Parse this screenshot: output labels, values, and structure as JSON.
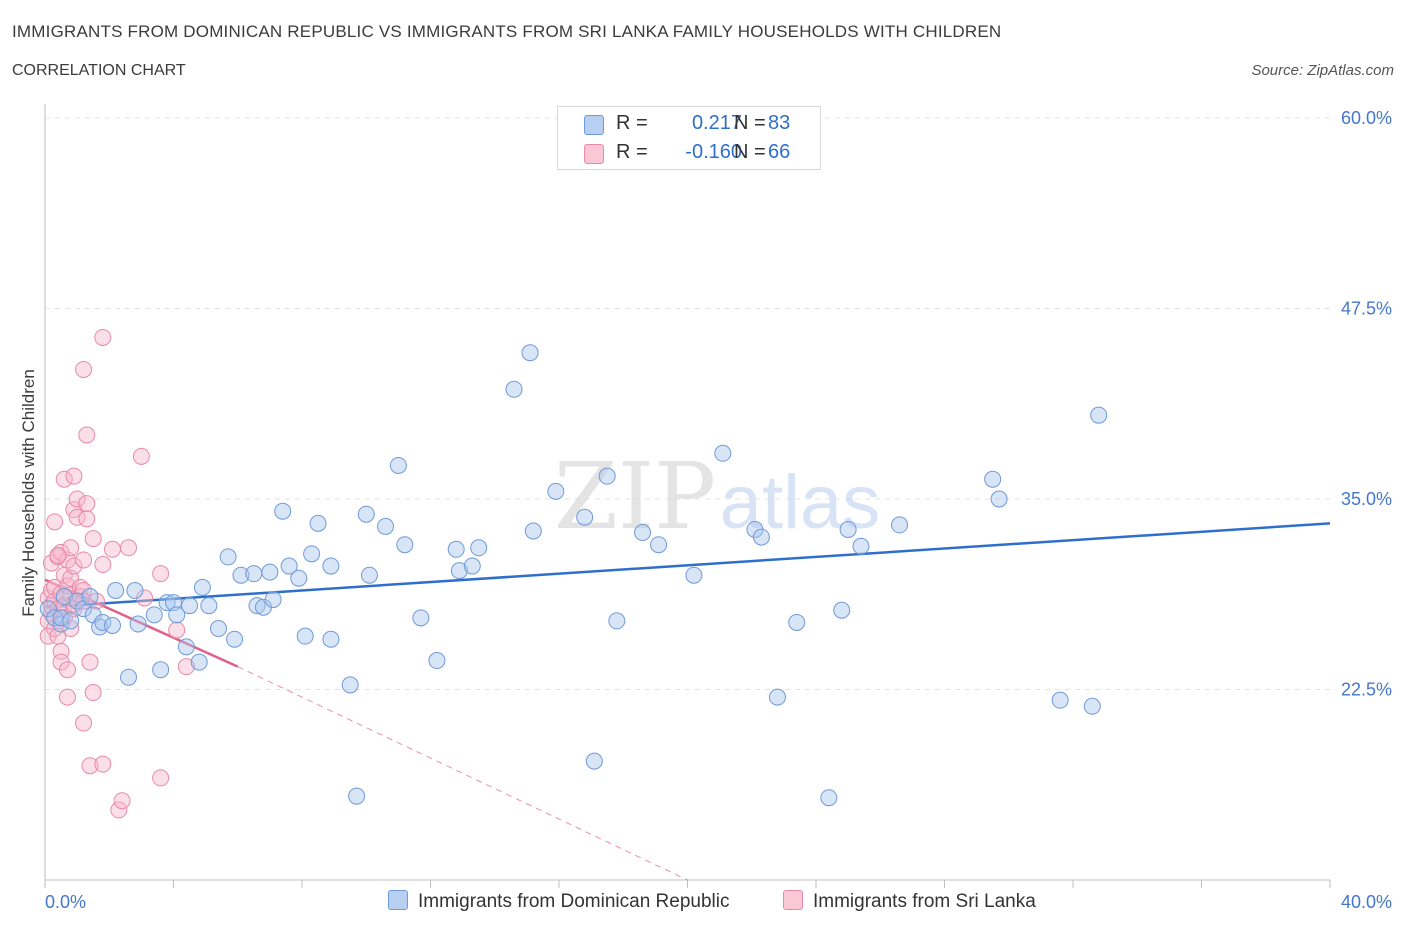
{
  "header": {
    "title": "IMMIGRANTS FROM DOMINICAN REPUBLIC VS IMMIGRANTS FROM SRI LANKA FAMILY HOUSEHOLDS WITH CHILDREN",
    "subtitle": "CORRELATION CHART",
    "source": "Source: ZipAtlas.com"
  },
  "legend": {
    "series1": {
      "r_label": "R =",
      "r_value": "0.217",
      "n_label": "N =",
      "n_value": "83"
    },
    "series2": {
      "r_label": "R =",
      "r_value": "-0.160",
      "n_label": "N =",
      "n_value": "66"
    }
  },
  "bottom_legend": {
    "series1": "Immigrants from Dominican Republic",
    "series2": "Immigrants from Sri Lanka"
  },
  "watermark": {
    "zip": "ZIP",
    "atlas": "atlas"
  },
  "colors": {
    "blue_fill": "#a8c6ee",
    "blue_stroke": "#6f9ad8",
    "blue_line": "#2f6fcc",
    "pink_fill": "#f6b8cb",
    "pink_stroke": "#e88aa8",
    "pink_line": "#e0608a",
    "grid": "#e3e3e3",
    "tick_text": "#4477cc"
  },
  "chart_data": {
    "type": "scatter",
    "title": "IMMIGRANTS FROM DOMINICAN REPUBLIC VS IMMIGRANTS FROM SRI LANKA FAMILY HOUSEHOLDS WITH CHILDREN",
    "ylabel": "Family Households with Children",
    "xlabel": "",
    "xlim": [
      0,
      40
    ],
    "ylim": [
      10,
      60
    ],
    "x_tick_labels": [
      "0.0%",
      "40.0%"
    ],
    "y_ticks": [
      22.5,
      35,
      47.5,
      60
    ],
    "y_tick_labels": [
      "22.5%",
      "35.0%",
      "47.5%",
      "60.0%"
    ],
    "grid": true,
    "legend_position": "top-center",
    "series": [
      {
        "name": "Immigrants from Dominican Republic",
        "color": "#a8c6ee",
        "points": [
          [
            0.1,
            27.8
          ],
          [
            0.3,
            27.2
          ],
          [
            0.5,
            26.8
          ],
          [
            0.5,
            27.2
          ],
          [
            0.6,
            28.6
          ],
          [
            0.8,
            27.0
          ],
          [
            1.0,
            28.3
          ],
          [
            1.2,
            27.8
          ],
          [
            1.4,
            28.6
          ],
          [
            1.5,
            27.4
          ],
          [
            1.7,
            26.6
          ],
          [
            1.8,
            26.9
          ],
          [
            2.1,
            26.7
          ],
          [
            2.2,
            29.0
          ],
          [
            2.6,
            23.3
          ],
          [
            2.8,
            29.0
          ],
          [
            2.9,
            26.8
          ],
          [
            3.4,
            27.4
          ],
          [
            3.6,
            23.8
          ],
          [
            3.8,
            28.2
          ],
          [
            4.0,
            28.2
          ],
          [
            4.1,
            27.4
          ],
          [
            4.4,
            25.3
          ],
          [
            4.5,
            28.0
          ],
          [
            4.8,
            24.3
          ],
          [
            4.9,
            29.2
          ],
          [
            5.1,
            28.0
          ],
          [
            5.4,
            26.5
          ],
          [
            5.7,
            31.2
          ],
          [
            5.9,
            25.8
          ],
          [
            6.1,
            30.0
          ],
          [
            6.5,
            30.1
          ],
          [
            6.6,
            28.0
          ],
          [
            6.8,
            27.9
          ],
          [
            7.0,
            30.2
          ],
          [
            7.1,
            28.4
          ],
          [
            7.4,
            34.2
          ],
          [
            7.6,
            30.6
          ],
          [
            7.9,
            29.8
          ],
          [
            8.1,
            26.0
          ],
          [
            8.3,
            31.4
          ],
          [
            8.5,
            33.4
          ],
          [
            8.9,
            25.8
          ],
          [
            8.9,
            30.6
          ],
          [
            9.5,
            22.8
          ],
          [
            9.7,
            15.5
          ],
          [
            10.0,
            34.0
          ],
          [
            10.1,
            30.0
          ],
          [
            10.6,
            33.2
          ],
          [
            11.0,
            37.2
          ],
          [
            11.2,
            32.0
          ],
          [
            11.7,
            27.2
          ],
          [
            12.2,
            24.4
          ],
          [
            12.8,
            31.7
          ],
          [
            12.9,
            30.3
          ],
          [
            13.3,
            30.6
          ],
          [
            13.5,
            31.8
          ],
          [
            14.6,
            42.2
          ],
          [
            15.1,
            44.6
          ],
          [
            15.2,
            32.9
          ],
          [
            15.9,
            35.5
          ],
          [
            16.8,
            33.8
          ],
          [
            17.1,
            17.8
          ],
          [
            17.5,
            36.5
          ],
          [
            17.8,
            27.0
          ],
          [
            18.6,
            32.8
          ],
          [
            19.1,
            32.0
          ],
          [
            20.2,
            30.0
          ],
          [
            21.1,
            38.0
          ],
          [
            22.1,
            33.0
          ],
          [
            22.3,
            32.5
          ],
          [
            22.8,
            22.0
          ],
          [
            23.4,
            26.9
          ],
          [
            24.4,
            15.4
          ],
          [
            24.8,
            27.7
          ],
          [
            25.0,
            33.0
          ],
          [
            25.4,
            31.9
          ],
          [
            26.6,
            33.3
          ],
          [
            29.5,
            36.3
          ],
          [
            29.7,
            35.0
          ],
          [
            31.6,
            21.8
          ],
          [
            32.6,
            21.4
          ],
          [
            32.8,
            40.5
          ]
        ]
      },
      {
        "name": "Immigrants from Sri Lanka",
        "color": "#f6b8cb",
        "points": [
          [
            0.1,
            28.5
          ],
          [
            0.1,
            27.0
          ],
          [
            0.1,
            26.0
          ],
          [
            0.2,
            29.0
          ],
          [
            0.2,
            27.5
          ],
          [
            0.2,
            28.0
          ],
          [
            0.2,
            30.8
          ],
          [
            0.3,
            26.5
          ],
          [
            0.3,
            33.5
          ],
          [
            0.3,
            29.2
          ],
          [
            0.3,
            28.3
          ],
          [
            0.4,
            31.2
          ],
          [
            0.4,
            27.8
          ],
          [
            0.4,
            26.0
          ],
          [
            0.5,
            31.5
          ],
          [
            0.5,
            28.8
          ],
          [
            0.5,
            25.0
          ],
          [
            0.5,
            24.3
          ],
          [
            0.6,
            36.3
          ],
          [
            0.6,
            30.0
          ],
          [
            0.6,
            28.0
          ],
          [
            0.6,
            27.2
          ],
          [
            0.7,
            31.0
          ],
          [
            0.7,
            29.3
          ],
          [
            0.7,
            22.0
          ],
          [
            0.7,
            23.8
          ],
          [
            0.8,
            31.8
          ],
          [
            0.8,
            29.8
          ],
          [
            0.8,
            28.7
          ],
          [
            0.8,
            26.5
          ],
          [
            0.9,
            36.5
          ],
          [
            0.9,
            34.3
          ],
          [
            0.9,
            30.6
          ],
          [
            0.9,
            27.8
          ],
          [
            0.9,
            28.1
          ],
          [
            1.0,
            35.0
          ],
          [
            1.0,
            33.8
          ],
          [
            1.1,
            29.2
          ],
          [
            1.1,
            28.6
          ],
          [
            1.2,
            43.5
          ],
          [
            1.2,
            31.0
          ],
          [
            1.2,
            29.0
          ],
          [
            1.2,
            28.3
          ],
          [
            1.2,
            20.3
          ],
          [
            1.3,
            39.2
          ],
          [
            1.3,
            34.7
          ],
          [
            1.4,
            24.3
          ],
          [
            1.4,
            17.5
          ],
          [
            1.5,
            32.4
          ],
          [
            1.5,
            22.3
          ],
          [
            1.6,
            28.3
          ],
          [
            1.8,
            45.6
          ],
          [
            1.8,
            17.6
          ],
          [
            1.8,
            30.7
          ],
          [
            2.1,
            31.7
          ],
          [
            2.3,
            14.6
          ],
          [
            2.4,
            15.2
          ],
          [
            2.6,
            31.8
          ],
          [
            3.0,
            37.8
          ],
          [
            3.1,
            28.5
          ],
          [
            3.6,
            30.1
          ],
          [
            3.6,
            16.7
          ],
          [
            4.1,
            26.4
          ],
          [
            4.4,
            24.0
          ],
          [
            1.3,
            33.7
          ],
          [
            0.4,
            31.3
          ]
        ]
      }
    ],
    "trendlines": [
      {
        "series": "Immigrants from Dominican Republic",
        "x": [
          0,
          40
        ],
        "y": [
          27.9,
          33.4
        ],
        "style": "solid"
      },
      {
        "series": "Immigrants from Sri Lanka",
        "x": [
          0,
          6
        ],
        "y": [
          29.7,
          24.0
        ],
        "style": "solid"
      },
      {
        "series": "Immigrants from Sri Lanka",
        "x": [
          6,
          20
        ],
        "y": [
          24.0,
          10.0
        ],
        "style": "dashed"
      }
    ]
  }
}
